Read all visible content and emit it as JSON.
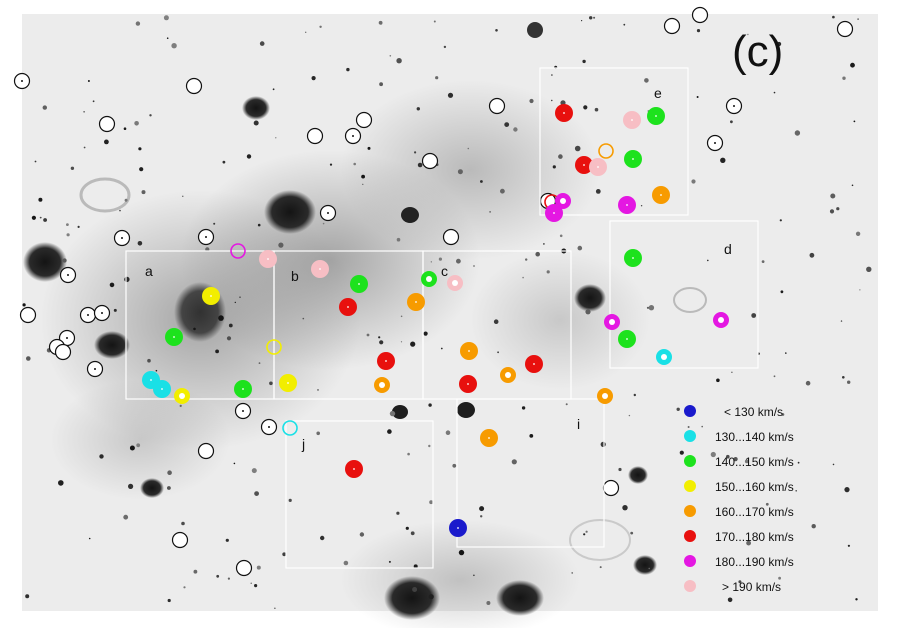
{
  "panel_label": "(c)",
  "region_labels": [
    "a",
    "b",
    "c",
    "d",
    "e",
    "i",
    "j"
  ],
  "legend": [
    {
      "label": "< 130 km/s",
      "color": "#1a1acc"
    },
    {
      "label": "130...140 km/s",
      "color": "#19e0e6"
    },
    {
      "label": "140...150 km/s",
      "color": "#1de21d"
    },
    {
      "label": "150...160 km/s",
      "color": "#f2ee00"
    },
    {
      "label": "160...170 km/s",
      "color": "#f79b00"
    },
    {
      "label": "170...180 km/s",
      "color": "#e8100e"
    },
    {
      "label": "180...190 km/s",
      "color": "#e417e2"
    },
    {
      "label": "> 190 km/s",
      "color": "#f7bec4"
    }
  ]
}
